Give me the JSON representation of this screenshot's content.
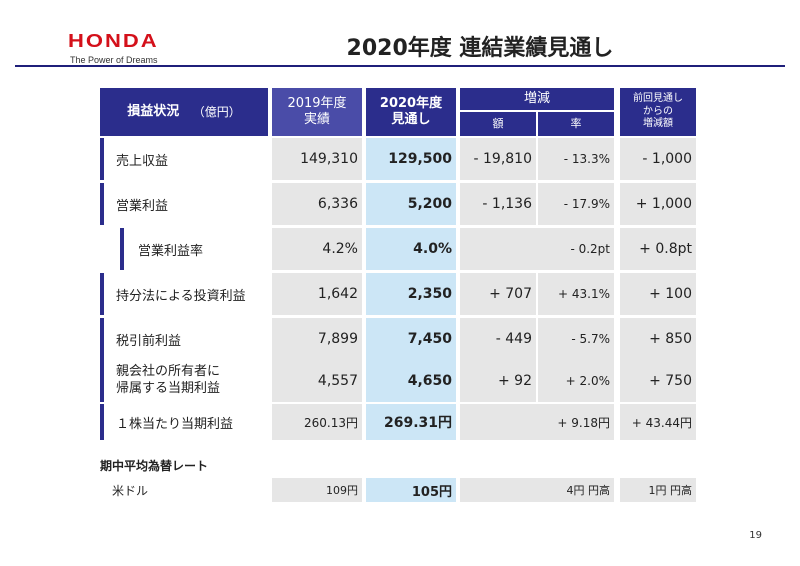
{
  "brand": {
    "logo": "HONDA",
    "tagline": "The Power of Dreams"
  },
  "title": "2020年度 連結業績見通し",
  "header": {
    "label": "損益状況",
    "unit": "（億円）",
    "col_2019": [
      "2019年度",
      "実績"
    ],
    "col_2020": [
      "2020年度",
      "見通し"
    ],
    "change": "増減",
    "change_amount": "額",
    "change_rate": "率",
    "prev_diff": [
      "前回見通し",
      "からの",
      "増減額"
    ]
  },
  "rows": [
    {
      "label": "売上収益",
      "y2019": "149,310",
      "y2020": "129,500",
      "diff": "- 19,810",
      "rate": "- 13.3%",
      "prev": "- 1,000"
    },
    {
      "label": "営業利益",
      "y2019": "6,336",
      "y2020": "5,200",
      "diff": "- 1,136",
      "rate": "- 17.9%",
      "prev": "+ 1,000"
    },
    {
      "label": "営業利益率",
      "y2019": "4.2%",
      "y2020": "4.0%",
      "diff_rate": "- 0.2pt",
      "prev": "+ 0.8pt"
    },
    {
      "label": "持分法による投資利益",
      "y2019": "1,642",
      "y2020": "2,350",
      "diff": "+ 707",
      "rate": "+ 43.1%",
      "prev": "+ 100"
    },
    {
      "label": "税引前利益",
      "y2019": "7,899",
      "y2020": "7,450",
      "diff": "- 449",
      "rate": "- 5.7%",
      "prev": "+ 850"
    },
    {
      "label1": "親会社の所有者に",
      "label2": "帰属する当期利益",
      "y2019": "4,557",
      "y2020": "4,650",
      "diff": "+ 92",
      "rate": "+ 2.0%",
      "prev": "+ 750"
    },
    {
      "label": "１株当たり当期利益",
      "y2019": "260.13円",
      "y2020": "269.31円",
      "diff_rate": "+ 9.18円",
      "prev": "+ 43.44円"
    }
  ],
  "fx": {
    "title": "期中平均為替レート",
    "label": "米ドル",
    "y2019": "109円",
    "y2020": "105円",
    "diff": "4円 円高",
    "prev": "1円 円高"
  },
  "page_number": "19",
  "colors": {
    "navy": "#2b2d8c",
    "red": "#d4101a",
    "grey": "#e6e6e6",
    "highlight": "#cce6f6"
  }
}
